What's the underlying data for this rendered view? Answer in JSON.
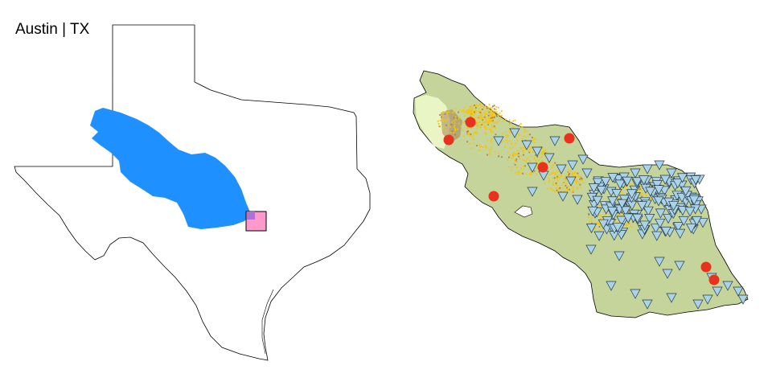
{
  "map": {
    "title": "Austin | TX"
  },
  "colors": {
    "background": "#ffffff",
    "state_outline": "#000000",
    "basin_highlight": "#1e90ff",
    "study_box": "#ff99cc",
    "land_base": "#c5d49a",
    "land_light": "#e9f5c4",
    "land_developed": "#f4c40f",
    "land_brown": "#a4815a",
    "station_triangle": "#a9d3e8",
    "station_circle": "#e8321e"
  },
  "legend_icons": {
    "triangle": "stream-gauge-triangle-icon",
    "circle": "well-circle-icon"
  }
}
